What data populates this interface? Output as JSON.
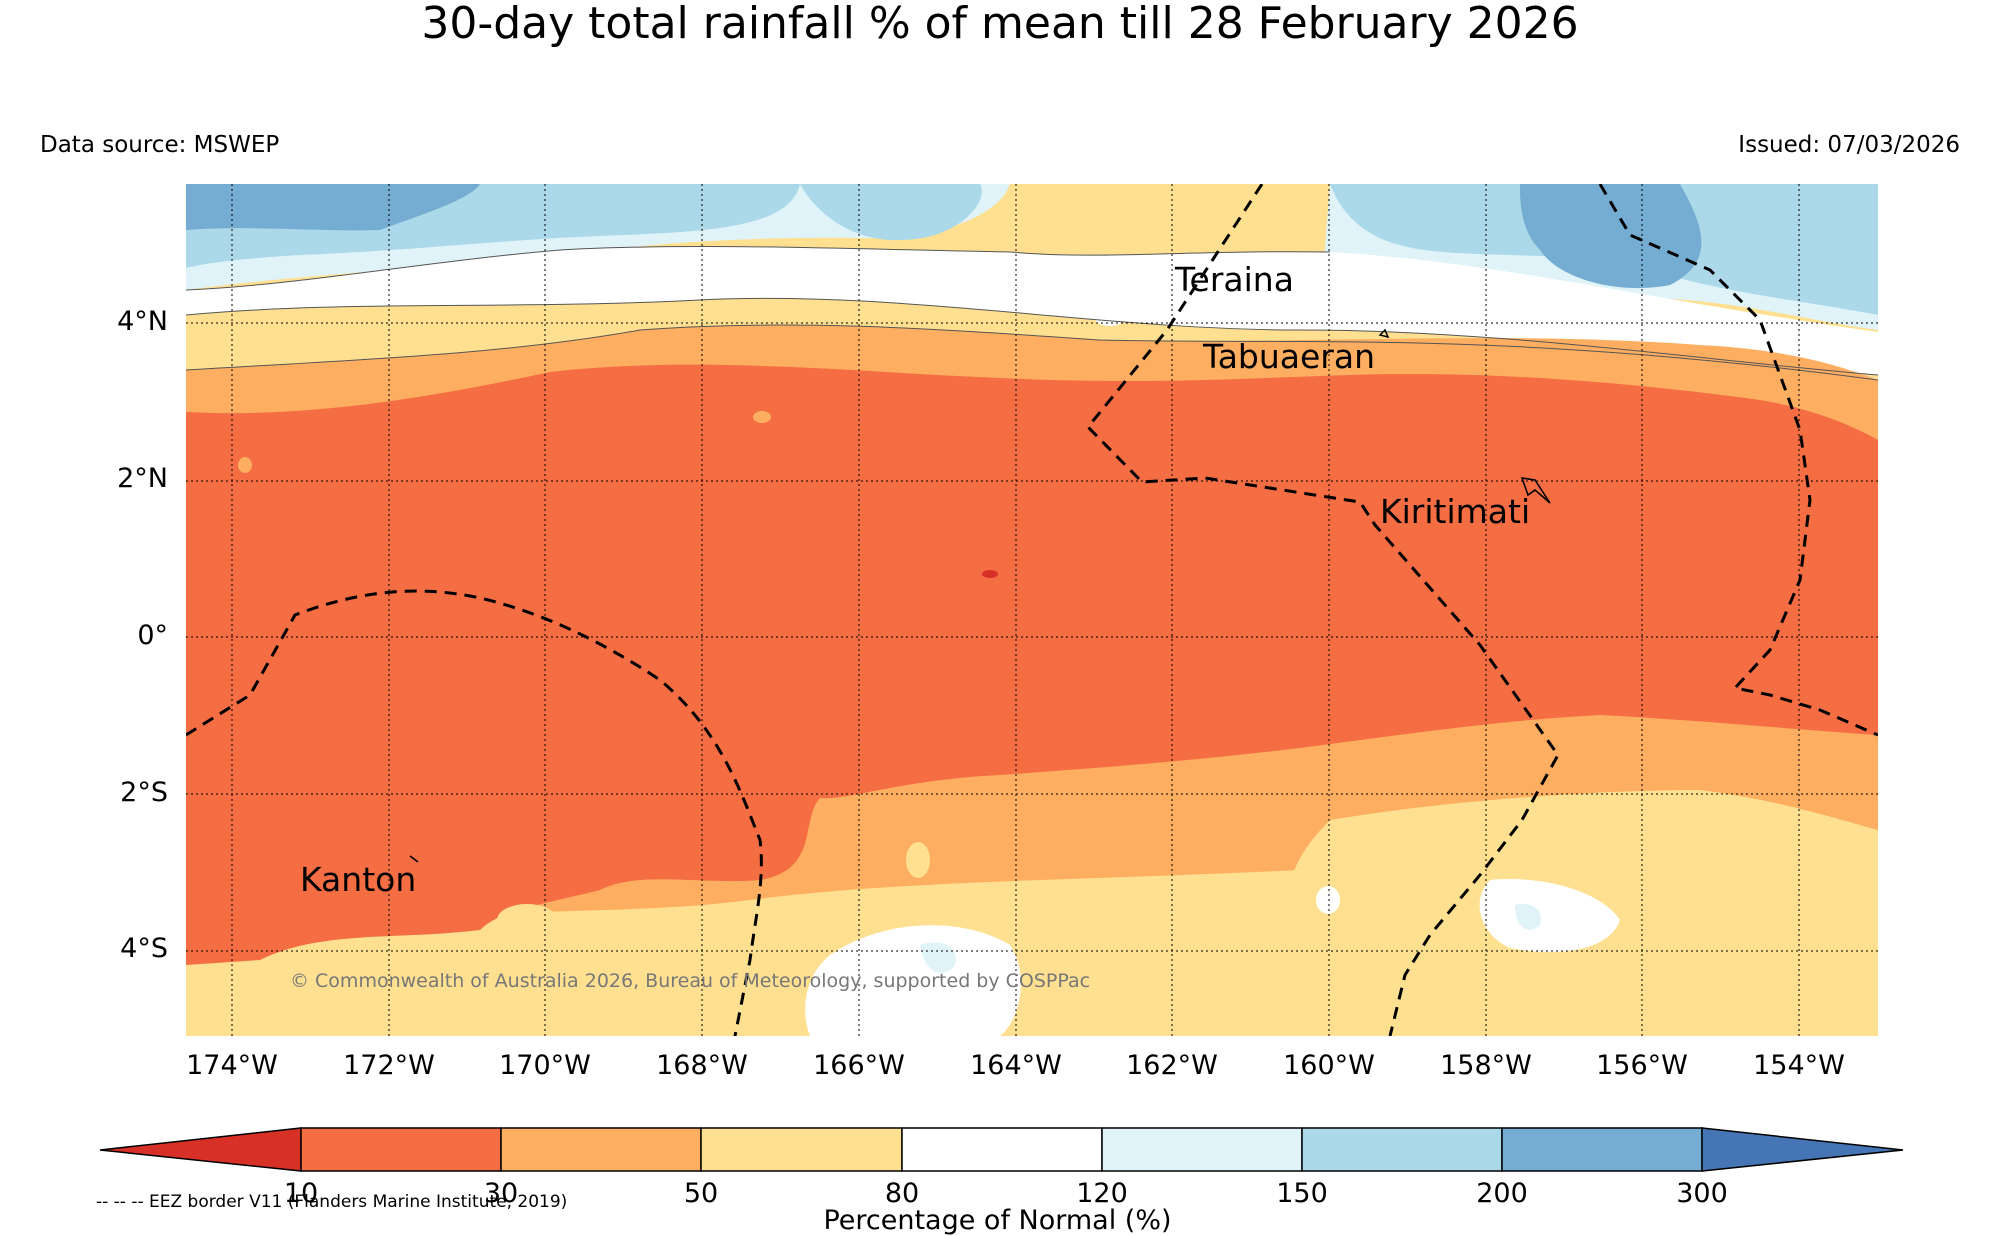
{
  "title": "30-day total rainfall % of mean till 28 February 2026",
  "data_source": "Data source: MSWEP",
  "issued": "Issued: 07/03/2026",
  "copyright": "© Commonwealth of Australia 2026, Bureau of Meteorology, supported by COSPPac",
  "eez_note": "-- -- -- EEZ border V11 (Flanders Marine Institute, 2019)",
  "colorbar": {
    "title": "Percentage of Normal (%)",
    "ticks": [
      "10",
      "30",
      "50",
      "80",
      "120",
      "150",
      "200",
      "300"
    ],
    "colors": [
      "#d73027",
      "#f46d43",
      "#fdae61",
      "#fee090",
      "#ffffff",
      "#e0f3f8",
      "#abd9e9",
      "#74add1",
      "#4575b4"
    ]
  },
  "axes": {
    "lat_labels": [
      "4°N",
      "2°N",
      "0°",
      "2°S",
      "4°S"
    ],
    "lon_labels": [
      "174°W",
      "172°W",
      "170°W",
      "168°W",
      "166°W",
      "164°W",
      "162°W",
      "160°W",
      "158°W",
      "156°W",
      "154°W"
    ]
  },
  "places": {
    "teraina": "Teraina",
    "tabuaeran": "Tabuaeran",
    "kiritimati": "Kiritimati",
    "kanton": "Kanton"
  }
}
